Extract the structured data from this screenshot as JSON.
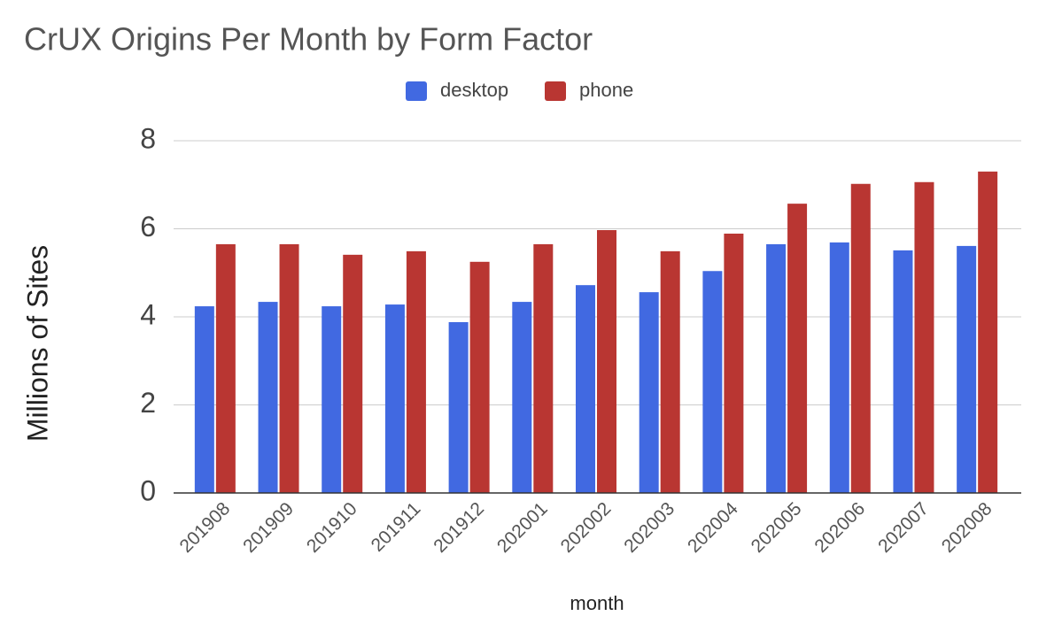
{
  "chart_data": {
    "type": "bar",
    "title": "CrUX Origins Per Month by Form Factor",
    "x_label": "month",
    "y_label": "Millions of Sites",
    "categories": [
      "201908",
      "201909",
      "201910",
      "201911",
      "201912",
      "202001",
      "202002",
      "202003",
      "202004",
      "202005",
      "202006",
      "202007",
      "202008"
    ],
    "series": [
      {
        "name": "desktop",
        "color": "#4169e1",
        "values": [
          4.24,
          4.34,
          4.24,
          4.28,
          3.88,
          4.34,
          4.72,
          4.56,
          5.04,
          5.65,
          5.69,
          5.51,
          5.61
        ]
      },
      {
        "name": "phone",
        "color": "#b93632",
        "values": [
          5.65,
          5.65,
          5.41,
          5.49,
          5.25,
          5.65,
          5.97,
          5.49,
          5.89,
          6.57,
          7.02,
          7.06,
          7.3
        ]
      }
    ],
    "ylim": [
      0,
      8
    ],
    "yticks": [
      0,
      2,
      4,
      6,
      8
    ],
    "grid": true,
    "legend": "top"
  }
}
